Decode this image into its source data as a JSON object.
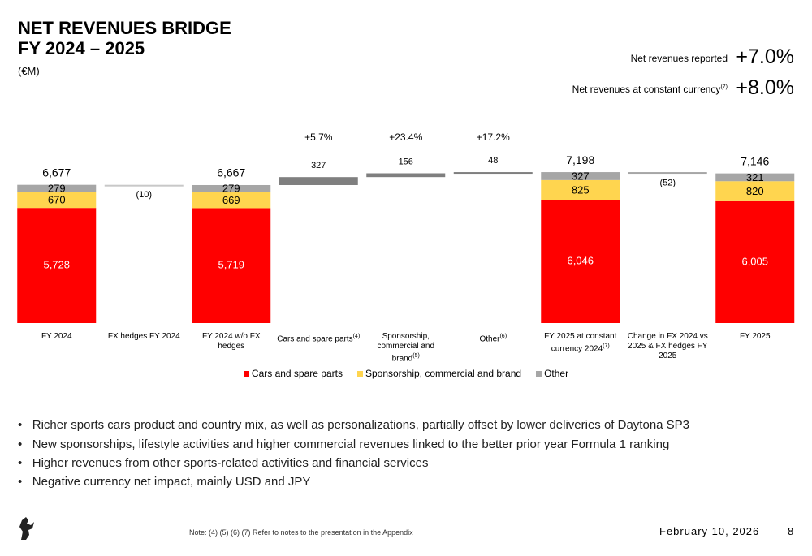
{
  "header": {
    "title_lines": [
      "NET REVENUES BRIDGE",
      "FY 2024 – 2025"
    ],
    "unit": "(€M)"
  },
  "kpis": [
    {
      "label": "Net revenues reported",
      "value": "+7.0%"
    },
    {
      "label": "Net revenues at constant currency",
      "note": "(7)",
      "value": "+8.0%"
    }
  ],
  "chart_data": {
    "type": "waterfall",
    "categories": [
      "FY 2024",
      "FX hedges FY 2024",
      "FY 2024 w/o FX hedges",
      "Cars and spare parts",
      "Sponsorship, commercial and brand",
      "Other",
      "FY 2025 at constant currency 2024",
      "Change in FX 2024 vs 2025 & FX hedges FY 2025",
      "FY 2025"
    ],
    "category_notes": [
      null,
      null,
      null,
      "(4)",
      "(5)",
      "(6)",
      "(7)",
      null,
      null
    ],
    "series": [
      {
        "name": "Cars and spare parts",
        "color": "#ff0000",
        "label_color": "#ffffff",
        "values": [
          5728,
          null,
          5719,
          null,
          null,
          null,
          6046,
          null,
          6005
        ],
        "value_labels": [
          "5,728",
          null,
          "5,719",
          null,
          null,
          null,
          "6,046",
          null,
          "6,005"
        ]
      },
      {
        "name": "Sponsorship, commercial and brand",
        "color": "#ffd54f",
        "label_color": "#000000",
        "values": [
          670,
          null,
          669,
          null,
          null,
          null,
          825,
          null,
          820
        ]
      },
      {
        "name": "Other",
        "color": "#a6a6a6",
        "label_color": "#000000",
        "values": [
          279,
          null,
          279,
          null,
          null,
          null,
          327,
          null,
          321
        ]
      }
    ],
    "totals": {
      "values": [
        6677,
        null,
        6667,
        null,
        null,
        null,
        7198,
        null,
        7146
      ],
      "value_labels": [
        "6,677",
        null,
        "6,667",
        null,
        null,
        null,
        "7,198",
        null,
        "7,146"
      ]
    },
    "deltas": {
      "values": [
        null,
        -10,
        null,
        327,
        156,
        48,
        null,
        -52,
        null
      ],
      "value_labels": [
        null,
        "(10)",
        null,
        null,
        null,
        null,
        null,
        "(52)",
        null
      ],
      "colors": [
        null,
        "#c8c8c8",
        null,
        "#7f7f7f",
        "#7f7f7f",
        "#7f7f7f",
        null,
        "#a6a6a6",
        null
      ]
    },
    "growth_labels": [
      null,
      null,
      null,
      "+5.7%",
      "+23.4%",
      "+17.2%",
      null,
      null,
      null
    ],
    "ylim": [
      1000,
      7500
    ]
  },
  "bullets": [
    "Richer sports cars product and country mix, as well as personalizations, partially offset by lower deliveries of Daytona SP3",
    "New sponsorships, lifestyle activities and higher commercial revenues linked to the better prior year Formula 1 ranking",
    "Higher revenues from other sports-related activities and financial services",
    "Negative currency net impact, mainly USD and JPY"
  ],
  "footer": {
    "note": "Note: (4) (5) (6) (7) Refer to notes to the presentation in the Appendix",
    "date": "February 10, 2026",
    "page": "8"
  }
}
